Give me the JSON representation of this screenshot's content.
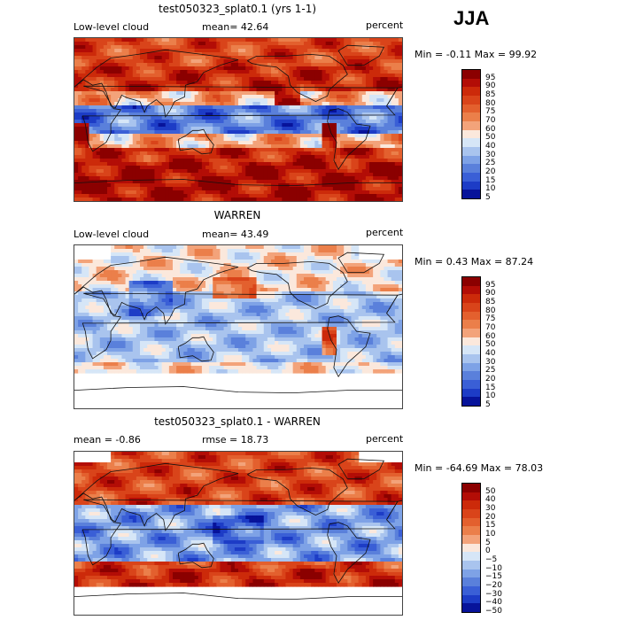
{
  "season": "JJA",
  "panels": [
    {
      "title": "test050323_splat0.1 (yrs 1-1)",
      "left_text": "Low-level cloud",
      "center_text": "mean=  42.64",
      "right_text": "percent",
      "minmax": "Min =  -0.11 Max =  99.92",
      "palette": "pos",
      "colorbar_labels": [
        "95",
        "90",
        "85",
        "80",
        "75",
        "70",
        "60",
        "50",
        "40",
        "30",
        "25",
        "20",
        "15",
        "10",
        "5"
      ]
    },
    {
      "title": "WARREN",
      "left_text": "Low-level cloud",
      "center_text": "mean=  43.49",
      "right_text": "percent",
      "minmax": "Min =   0.43 Max =  87.24",
      "palette": "pos",
      "colorbar_labels": [
        "95",
        "90",
        "85",
        "80",
        "75",
        "70",
        "60",
        "50",
        "40",
        "30",
        "25",
        "20",
        "15",
        "10",
        "5"
      ]
    },
    {
      "title": "test050323_splat0.1 - WARREN",
      "left_text": "mean =  -0.86",
      "center_text": "rmse =  18.73",
      "right_text": "percent",
      "minmax": "Min = -64.69 Max =  78.03",
      "palette": "diff",
      "colorbar_labels": [
        "50",
        "40",
        "30",
        "20",
        "15",
        "10",
        "5",
        "0",
        "−5",
        "−10",
        "−15",
        "−20",
        "−30",
        "−40",
        "−50"
      ]
    }
  ],
  "colors": {
    "pos": [
      "#8b0000",
      "#b30d06",
      "#cc2a0a",
      "#d9441a",
      "#e3602e",
      "#eb7f4a",
      "#f3a37a",
      "#fbe8dc",
      "#d6e6f7",
      "#a9c4ee",
      "#7ea2e6",
      "#5a80db",
      "#3a5fd6",
      "#1d3cc6",
      "#07139a"
    ],
    "diff": [
      "#8b0000",
      "#b30d06",
      "#cc2a0a",
      "#d9441a",
      "#e3602e",
      "#eb7f4a",
      "#f3a37a",
      "#fbe8dc",
      "#d6e6f7",
      "#a9c4ee",
      "#7ea2e6",
      "#5a80db",
      "#3a5fd6",
      "#1d3cc6",
      "#07139a"
    ]
  }
}
